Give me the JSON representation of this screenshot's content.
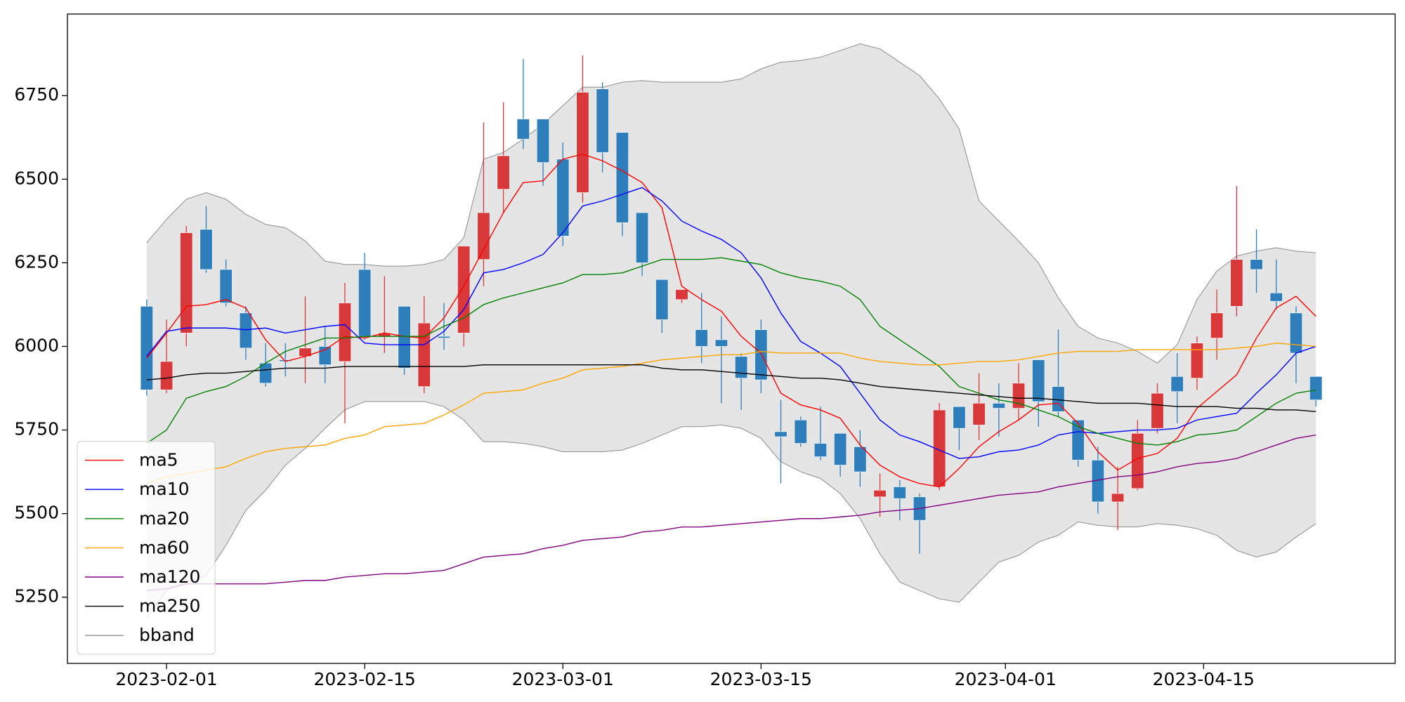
{
  "chart_data": {
    "type": "candlestick",
    "x": [
      "2023-01-31",
      "2023-02-01",
      "2023-02-02",
      "2023-02-03",
      "2023-02-06",
      "2023-02-07",
      "2023-02-08",
      "2023-02-09",
      "2023-02-10",
      "2023-02-13",
      "2023-02-14",
      "2023-02-15",
      "2023-02-16",
      "2023-02-17",
      "2023-02-20",
      "2023-02-21",
      "2023-02-22",
      "2023-02-23",
      "2023-02-24",
      "2023-02-27",
      "2023-02-28",
      "2023-03-01",
      "2023-03-02",
      "2023-03-03",
      "2023-03-06",
      "2023-03-07",
      "2023-03-08",
      "2023-03-09",
      "2023-03-10",
      "2023-03-13",
      "2023-03-14",
      "2023-03-15",
      "2023-03-16",
      "2023-03-17",
      "2023-03-20",
      "2023-03-21",
      "2023-03-22",
      "2023-03-23",
      "2023-03-24",
      "2023-03-27",
      "2023-03-28",
      "2023-03-29",
      "2023-03-30",
      "2023-03-31",
      "2023-04-03",
      "2023-04-04",
      "2023-04-05",
      "2023-04-06",
      "2023-04-07",
      "2023-04-10",
      "2023-04-11",
      "2023-04-12",
      "2023-04-13",
      "2023-04-14",
      "2023-04-17",
      "2023-04-18",
      "2023-04-19",
      "2023-04-20",
      "2023-04-21",
      "2023-04-24"
    ],
    "open": [
      6120,
      5870,
      6040,
      6350,
      6230,
      6100,
      5950,
      5960,
      5970,
      6000,
      5955,
      6230,
      6030,
      6120,
      5880,
      6030,
      6040,
      6260,
      6470,
      6680,
      6680,
      6560,
      6460,
      6770,
      6640,
      6400,
      6200,
      6140,
      6050,
      6020,
      5970,
      6050,
      5745,
      5780,
      5710,
      5740,
      5700,
      5550,
      5580,
      5550,
      5580,
      5820,
      5765,
      5830,
      5815,
      5960,
      5880,
      5780,
      5660,
      5535,
      5575,
      5755,
      5910,
      5905,
      6025,
      6120,
      6260,
      6160,
      6100,
      5910
    ],
    "high": [
      6140,
      6080,
      6360,
      6420,
      6260,
      6120,
      6010,
      6010,
      6150,
      6060,
      6190,
      6280,
      6210,
      6120,
      6150,
      6130,
      6300,
      6670,
      6730,
      6860,
      6680,
      6610,
      6870,
      6790,
      6640,
      6400,
      6200,
      6170,
      6160,
      6090,
      5980,
      6080,
      5840,
      5790,
      5820,
      5740,
      5750,
      5620,
      5600,
      5560,
      5830,
      5820,
      5920,
      5890,
      5950,
      5960,
      6050,
      5780,
      5700,
      5640,
      5780,
      5890,
      5980,
      6030,
      6170,
      6480,
      6350,
      6260,
      6120,
      5910
    ],
    "low": [
      5853,
      5860,
      6000,
      6220,
      6120,
      5960,
      5880,
      5910,
      5890,
      5890,
      5770,
      6020,
      5980,
      5915,
      5860,
      5990,
      6000,
      6180,
      6400,
      6590,
      6480,
      6300,
      6430,
      6520,
      6330,
      6210,
      6040,
      6130,
      5950,
      5830,
      5810,
      5860,
      5590,
      5700,
      5660,
      5610,
      5580,
      5490,
      5480,
      5380,
      5570,
      5690,
      5720,
      5730,
      5780,
      5760,
      5790,
      5640,
      5500,
      5450,
      5570,
      5740,
      5770,
      5870,
      5960,
      6090,
      6160,
      6110,
      5890,
      5820
    ],
    "close": [
      5870,
      5955,
      6340,
      6230,
      6130,
      5995,
      5890,
      5955,
      5995,
      5945,
      6130,
      6030,
      6040,
      5935,
      6070,
      6025,
      6300,
      6400,
      6570,
      6620,
      6550,
      6330,
      6760,
      6580,
      6370,
      6250,
      6080,
      6170,
      6000,
      6000,
      5905,
      5900,
      5730,
      5710,
      5670,
      5645,
      5625,
      5570,
      5545,
      5480,
      5810,
      5755,
      5830,
      5815,
      5890,
      5835,
      5805,
      5660,
      5535,
      5560,
      5740,
      5860,
      5865,
      6010,
      6100,
      6260,
      6230,
      6135,
      5980,
      5840
    ],
    "up_color": "#d9383a",
    "down_color": "#2e7ebc",
    "series": [
      {
        "name": "ma5",
        "color": "#ff0000",
        "values": [
          5965,
          6040,
          6120,
          6125,
          6140,
          6115,
          6020,
          5955,
          5970,
          5990,
          6030,
          6025,
          6040,
          6030,
          6025,
          6085,
          6180,
          6290,
          6400,
          6490,
          6495,
          6560,
          6575,
          6555,
          6525,
          6490,
          6415,
          6180,
          6140,
          6105,
          6030,
          5980,
          5860,
          5825,
          5810,
          5785,
          5705,
          5645,
          5610,
          5590,
          5580,
          5635,
          5700,
          5745,
          5780,
          5825,
          5830,
          5770,
          5685,
          5630,
          5665,
          5680,
          5725,
          5815,
          5865,
          5915,
          6025,
          6115,
          6150,
          6090
        ]
      },
      {
        "name": "ma10",
        "color": "#0000ff",
        "values": [
          5970,
          6045,
          6055,
          6055,
          6055,
          6050,
          6055,
          6040,
          6050,
          6060,
          6065,
          6010,
          6005,
          6005,
          6005,
          6045,
          6110,
          6220,
          6230,
          6250,
          6275,
          6340,
          6420,
          6435,
          6455,
          6475,
          6435,
          6375,
          6345,
          6320,
          6280,
          6205,
          6100,
          6015,
          5980,
          5940,
          5860,
          5780,
          5735,
          5715,
          5690,
          5665,
          5670,
          5685,
          5690,
          5705,
          5735,
          5745,
          5740,
          5745,
          5750,
          5750,
          5755,
          5780,
          5790,
          5800,
          5860,
          5915,
          5980,
          6000
        ]
      },
      {
        "name": "ma20",
        "color": "#008000",
        "values": [
          5710,
          5750,
          5845,
          5865,
          5880,
          5910,
          5950,
          5985,
          6005,
          6025,
          6025,
          6030,
          6030,
          6030,
          6030,
          6060,
          6085,
          6125,
          6145,
          6160,
          6175,
          6190,
          6215,
          6215,
          6220,
          6240,
          6260,
          6260,
          6260,
          6265,
          6255,
          6245,
          6220,
          6205,
          6195,
          6180,
          6140,
          6060,
          6020,
          5980,
          5940,
          5880,
          5860,
          5840,
          5830,
          5810,
          5790,
          5760,
          5740,
          5725,
          5710,
          5705,
          5715,
          5735,
          5740,
          5750,
          5790,
          5830,
          5860,
          5870
        ]
      },
      {
        "name": "ma60",
        "color": "#ffa500",
        "values": [
          5590,
          5610,
          5620,
          5630,
          5640,
          5665,
          5685,
          5695,
          5700,
          5705,
          5725,
          5735,
          5760,
          5765,
          5770,
          5795,
          5825,
          5860,
          5865,
          5870,
          5890,
          5905,
          5930,
          5935,
          5940,
          5950,
          5960,
          5965,
          5970,
          5975,
          5975,
          5985,
          5980,
          5980,
          5980,
          5980,
          5965,
          5955,
          5950,
          5945,
          5945,
          5950,
          5955,
          5955,
          5960,
          5970,
          5980,
          5985,
          5985,
          5985,
          5990,
          5990,
          5990,
          5990,
          5990,
          5995,
          6000,
          6010,
          6005,
          6000
        ]
      },
      {
        "name": "ma120",
        "color": "#800080",
        "values": [
          5270,
          5275,
          5290,
          5290,
          5290,
          5290,
          5290,
          5295,
          5300,
          5300,
          5310,
          5315,
          5320,
          5320,
          5325,
          5330,
          5350,
          5370,
          5375,
          5380,
          5395,
          5405,
          5420,
          5425,
          5430,
          5445,
          5450,
          5460,
          5460,
          5465,
          5470,
          5475,
          5480,
          5485,
          5485,
          5490,
          5495,
          5505,
          5510,
          5515,
          5525,
          5535,
          5545,
          5555,
          5560,
          5565,
          5580,
          5590,
          5600,
          5610,
          5615,
          5625,
          5640,
          5650,
          5655,
          5665,
          5685,
          5705,
          5725,
          5735
        ]
      },
      {
        "name": "ma250",
        "color": "#000000",
        "values": [
          5900,
          5905,
          5915,
          5920,
          5920,
          5925,
          5930,
          5935,
          5935,
          5935,
          5940,
          5940,
          5940,
          5940,
          5940,
          5940,
          5940,
          5945,
          5945,
          5945,
          5945,
          5945,
          5945,
          5945,
          5945,
          5945,
          5935,
          5930,
          5930,
          5925,
          5920,
          5915,
          5910,
          5905,
          5905,
          5900,
          5890,
          5880,
          5875,
          5870,
          5865,
          5860,
          5855,
          5850,
          5845,
          5845,
          5840,
          5835,
          5830,
          5830,
          5830,
          5825,
          5820,
          5820,
          5820,
          5815,
          5815,
          5810,
          5810,
          5805
        ]
      },
      {
        "name": "bband",
        "color": "#8c8c8c",
        "fill": "#e5e5e5",
        "upper": [
          6310,
          6380,
          6440,
          6460,
          6440,
          6395,
          6365,
          6355,
          6315,
          6255,
          6245,
          6245,
          6240,
          6240,
          6245,
          6260,
          6325,
          6560,
          6580,
          6620,
          6665,
          6720,
          6775,
          6775,
          6790,
          6795,
          6790,
          6790,
          6790,
          6790,
          6800,
          6830,
          6850,
          6855,
          6865,
          6885,
          6905,
          6890,
          6850,
          6810,
          6740,
          6650,
          6435,
          6375,
          6315,
          6250,
          6145,
          6060,
          6025,
          6010,
          5985,
          5950,
          6005,
          6140,
          6225,
          6270,
          6285,
          6295,
          6285,
          6280
        ],
        "lower": [
          5190,
          5270,
          5295,
          5315,
          5405,
          5510,
          5570,
          5645,
          5695,
          5755,
          5810,
          5835,
          5835,
          5835,
          5835,
          5820,
          5780,
          5715,
          5715,
          5710,
          5700,
          5685,
          5685,
          5685,
          5690,
          5710,
          5735,
          5760,
          5760,
          5765,
          5755,
          5725,
          5655,
          5625,
          5605,
          5560,
          5485,
          5380,
          5295,
          5270,
          5245,
          5235,
          5295,
          5355,
          5375,
          5415,
          5435,
          5475,
          5465,
          5460,
          5460,
          5470,
          5465,
          5455,
          5435,
          5390,
          5370,
          5385,
          5430,
          5470
        ]
      }
    ],
    "ylim": [
      5052,
      6994
    ],
    "yticks": [
      5250,
      5500,
      5750,
      6000,
      6250,
      6500,
      6750
    ],
    "xticks": [
      "2023-02-01",
      "2023-02-15",
      "2023-03-01",
      "2023-03-15",
      "2023-04-01",
      "2023-04-15"
    ],
    "legend": "lower left"
  }
}
